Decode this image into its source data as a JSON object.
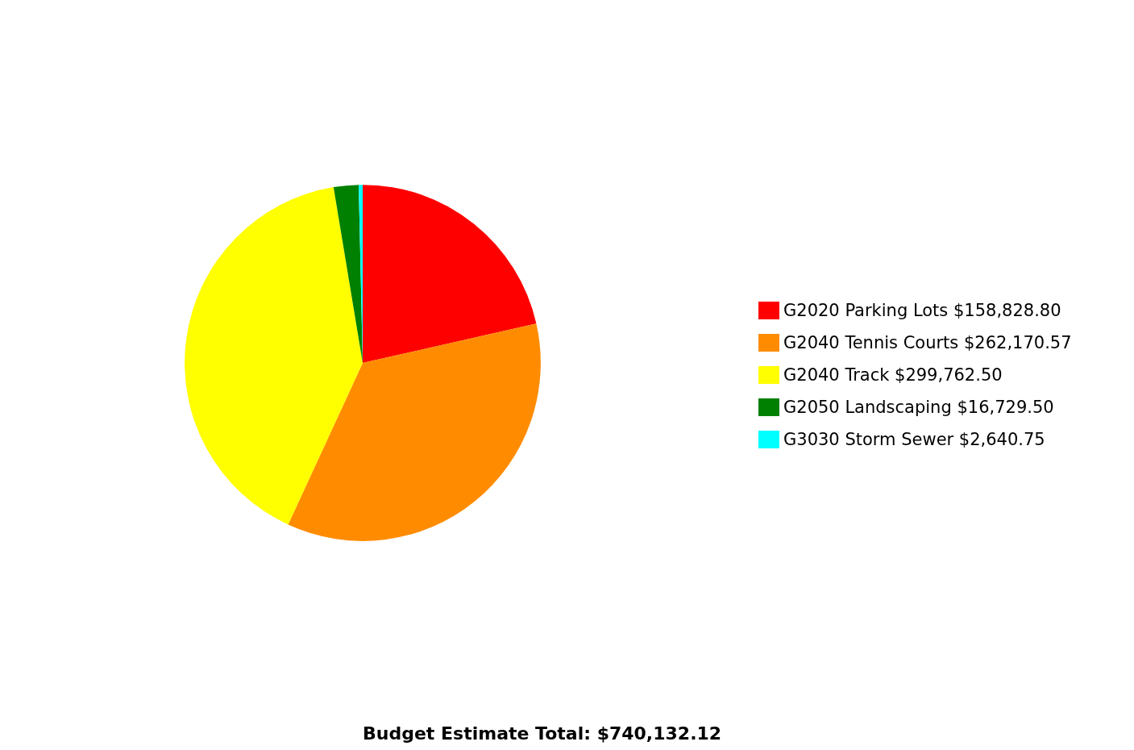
{
  "chart_data": {
    "type": "pie",
    "categories": [
      "G2020 Parking Lots",
      "G2040 Tennis Courts",
      "G2040 Track",
      "G2050 Landscaping",
      "G3030 Storm Sewer"
    ],
    "values": [
      158828.8,
      262170.57,
      299762.5,
      16729.5,
      2640.75
    ],
    "value_labels": [
      "$158,828.80",
      "$262,170.57",
      "$299,762.50",
      "$16,729.50",
      "$2,640.75"
    ],
    "colors": [
      "#ff0000",
      "#ff8c00",
      "#ffff00",
      "#008000",
      "#00ffff"
    ],
    "legend": "right",
    "annotations": [
      "Budget Estimate Total: $740,132.12"
    ]
  }
}
